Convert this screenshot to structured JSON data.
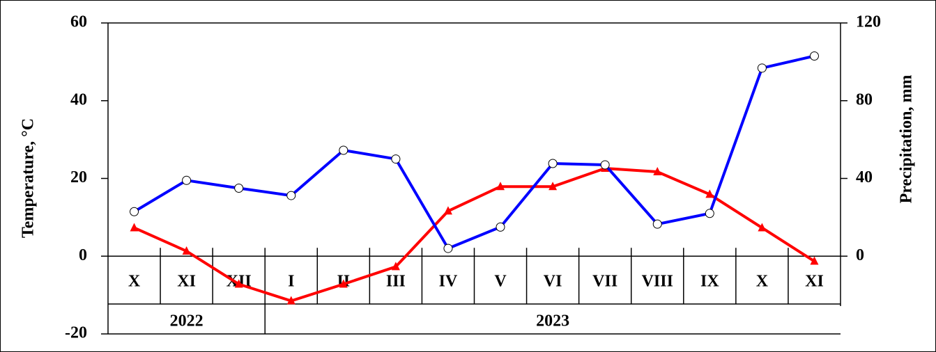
{
  "chart_data": {
    "type": "line",
    "categories": [
      "X",
      "XI",
      "XII",
      "I",
      "II",
      "III",
      "IV",
      "V",
      "VI",
      "VII",
      "VIII",
      "IX",
      "X",
      "XI"
    ],
    "x_groups": [
      {
        "label": "2022",
        "count": 3
      },
      {
        "label": "2023",
        "count": 11
      }
    ],
    "y_label": "Temperature, °C",
    "y2_label": "Precipitation, mm",
    "ylim": [
      -20,
      60
    ],
    "yticks": [
      -20,
      0,
      20,
      40,
      60
    ],
    "y2lim": [
      -40,
      120
    ],
    "y2ticks": [
      0,
      40,
      80,
      120
    ],
    "grid": false,
    "series": [
      {
        "color": "#ff0000",
        "marker": "triangle",
        "values": [
          7.3,
          1.3,
          -7.2,
          -11.5,
          -7.2,
          -2.7,
          11.6,
          17.9,
          17.9,
          22.6,
          21.7,
          15.9,
          7.3,
          -1.3
        ]
      },
      {
        "color": "#0000ff",
        "marker": "circle",
        "axis": "y2",
        "values": [
          22.9,
          39,
          35,
          31.2,
          54.5,
          50,
          4,
          15,
          47.7,
          47,
          16.5,
          22,
          96.8,
          103
        ]
      }
    ]
  }
}
